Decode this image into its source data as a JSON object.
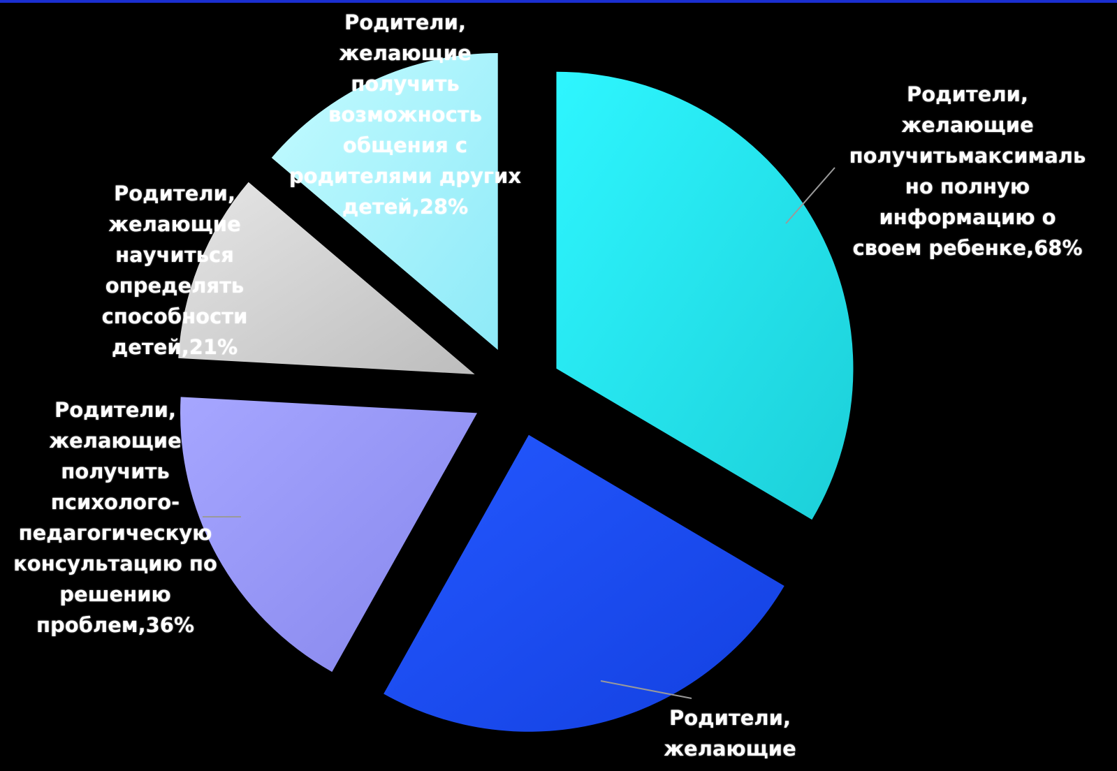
{
  "chart_data": {
    "type": "pie",
    "title": "",
    "exploded": true,
    "slices": [
      {
        "label": "Родители,\nжелающие\nполучитьмаксималь\nно полную\nинформацию о\nсвоем ребенке,68%",
        "value": 68,
        "color": "#22e4f0"
      },
      {
        "label": "Родители,\nжелающие",
        "value": 50,
        "color": "#1e50ff"
      },
      {
        "label": "Родители,\nжелающие\nполучить\nпсихолого-\nпедагогическую\nконсультацию по\nрешению\nпроблем,36%",
        "value": 36,
        "color": "#9898f8"
      },
      {
        "label": "Родители,\nжелающие\nнаучиться\nопределять\nспособности\nдетей,21%",
        "value": 21,
        "color": "#d4d4d4"
      },
      {
        "label": "Родители,\nжелающие\nполучить\nвозможность\nобщения с\nродителями других\nдетей,28%",
        "value": 28,
        "color": "#a8f4ff"
      }
    ]
  }
}
